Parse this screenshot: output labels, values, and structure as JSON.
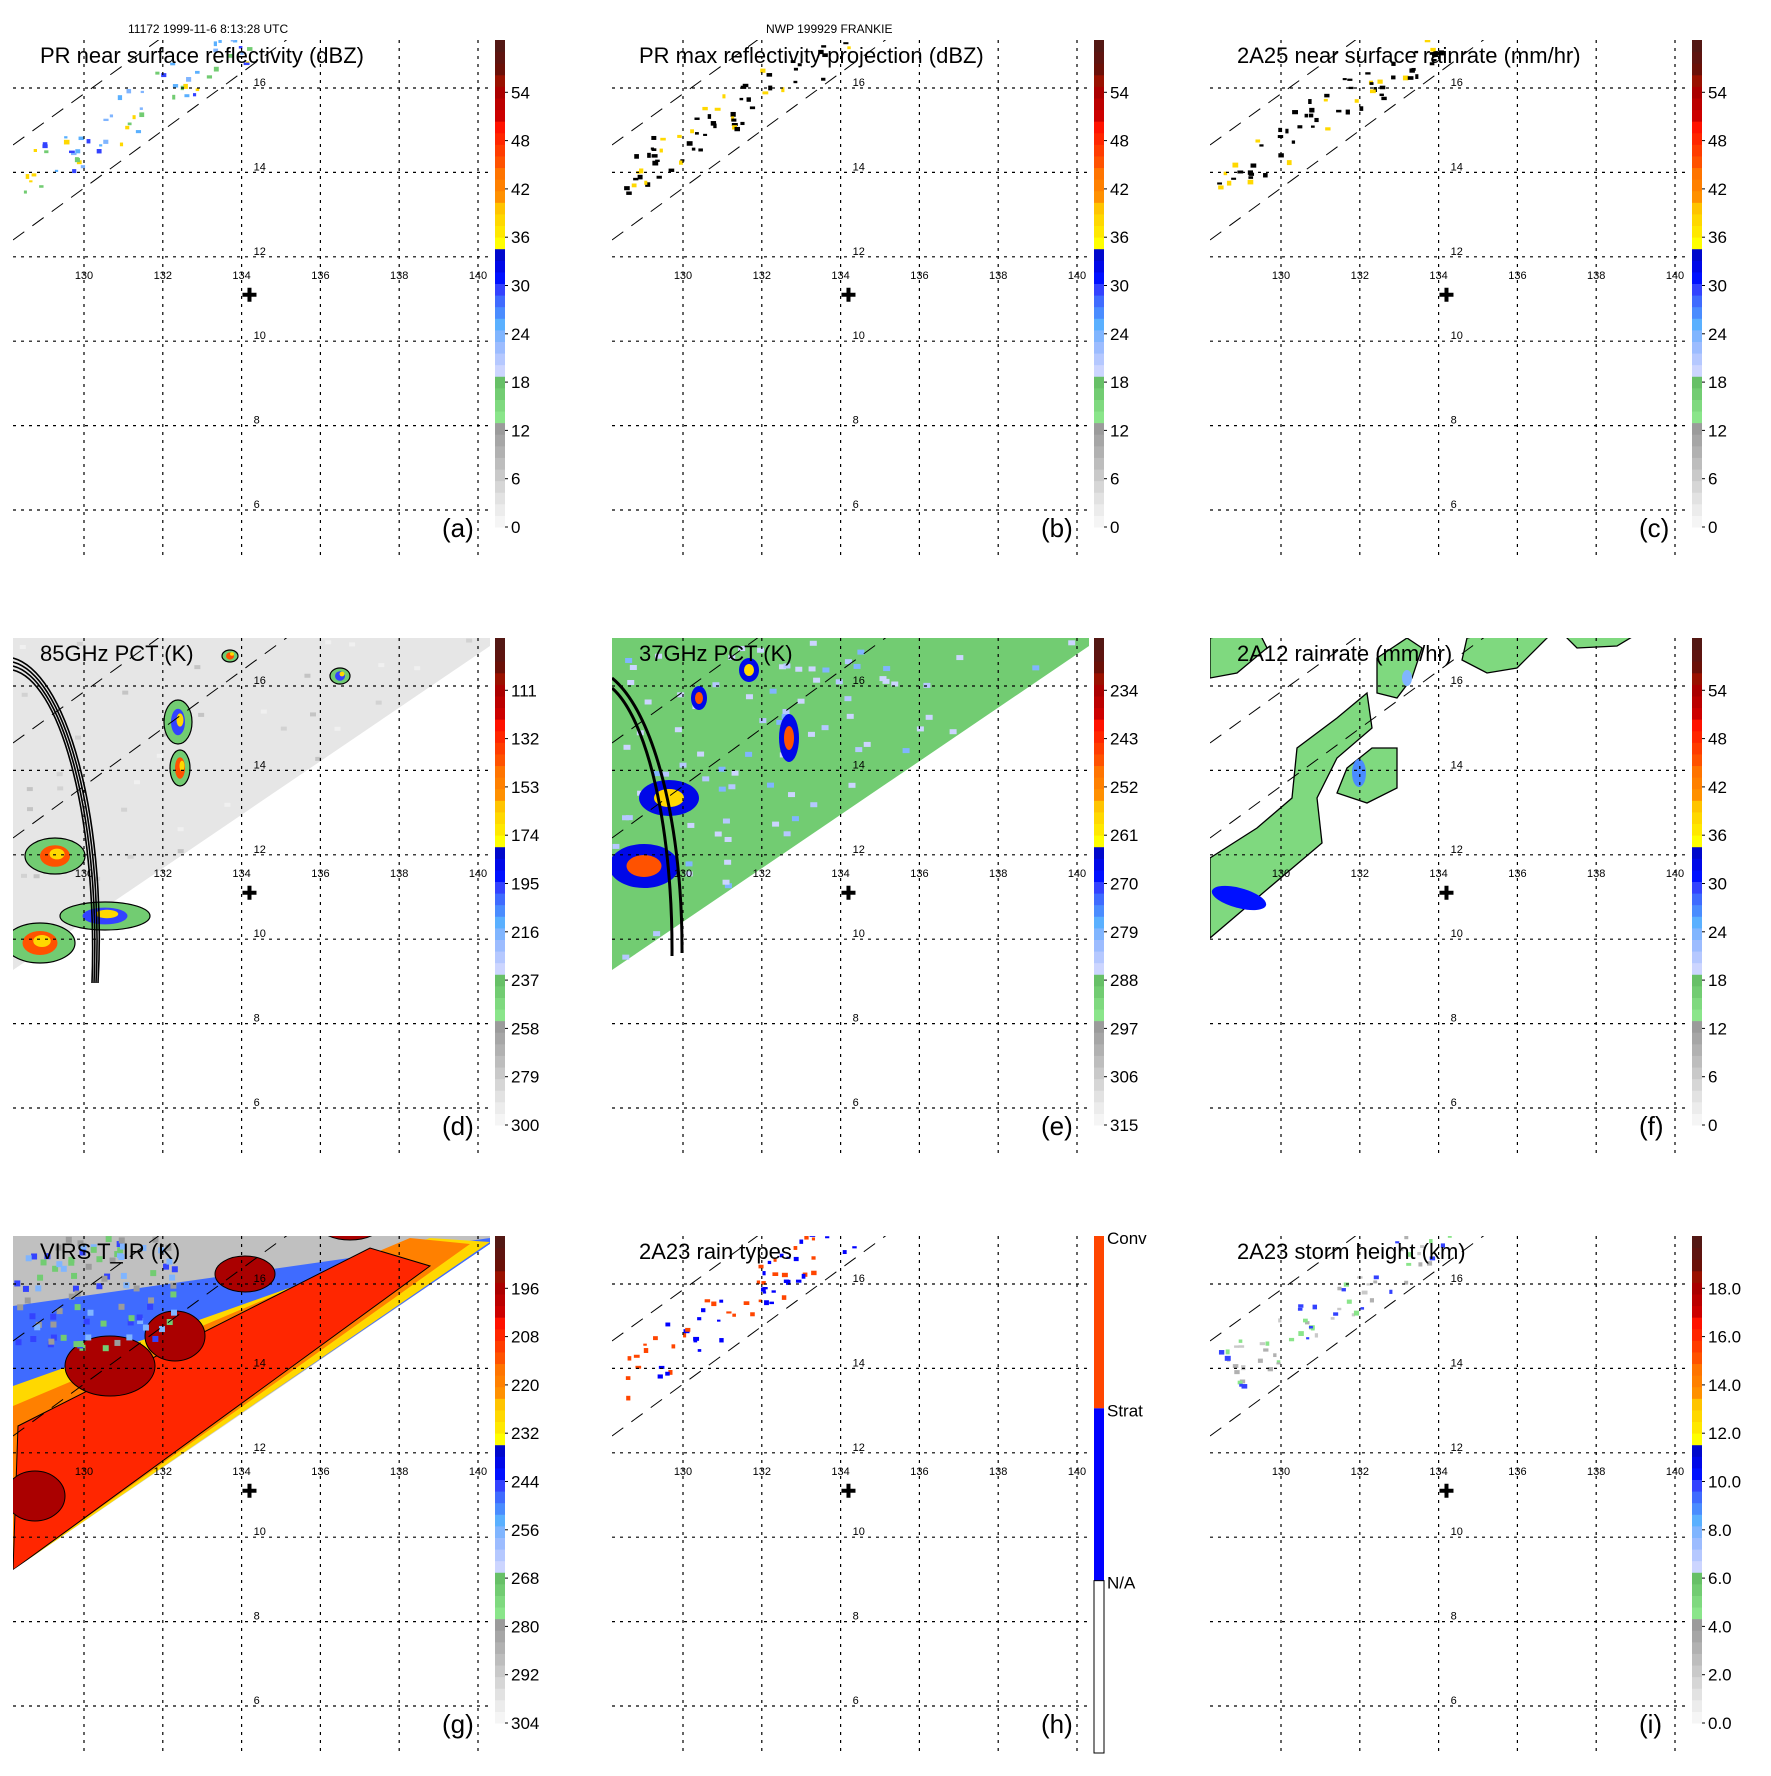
{
  "header": {
    "left_caption": "11172 1999-11-6 8:13:28 UTC",
    "center_caption": "NWP 199929 FRANKIE"
  },
  "palette": {
    "standard": [
      "#f5f5f5",
      "#ececec",
      "#e2e2e2",
      "#d6d6d6",
      "#c9c9c9",
      "#bdbdbd",
      "#b1b1b1",
      "#a6a6a6",
      "#9b9b9b",
      "#8ae58a",
      "#7fd97f",
      "#72cc72",
      "#67c067",
      "#ccd5ff",
      "#b5c8ff",
      "#9cbcff",
      "#80b5ff",
      "#5ab0ff",
      "#4a8cff",
      "#3f6bff",
      "#3342ff",
      "#0010ff",
      "#0008e8",
      "#0008cc",
      "#ffff00",
      "#ffe800",
      "#ffd800",
      "#ffc400",
      "#ff9000",
      "#ff8000",
      "#ff7400",
      "#ff5200",
      "#ff3c00",
      "#ff2600",
      "#ff1200",
      "#cc0000",
      "#bb0000",
      "#aa0000",
      "#991100",
      "#6a1008",
      "#5e1410",
      "#531814"
    ],
    "rain_types": {
      "conv": "#ff4500",
      "strat": "#0000ff",
      "na": "#ffffff"
    }
  },
  "chart_data": [
    {
      "id": "a",
      "type": "heatmap",
      "title": "PR near surface reflectivity (dBZ)",
      "panel_label": "(a)",
      "field": "pr_near_surface_reflectivity",
      "units": "dBZ",
      "colorbar": {
        "ticks": [
          "0",
          "6",
          "12",
          "18",
          "24",
          "30",
          "36",
          "42",
          "48",
          "54"
        ],
        "range": [
          0,
          60
        ],
        "colors": "standard_sparse"
      },
      "lon_ticks": [
        "130",
        "132",
        "134",
        "136",
        "138",
        "140"
      ],
      "lat_ticks": [
        "16",
        "14",
        "12",
        "10",
        "8",
        "6"
      ],
      "xlim": [
        128.3,
        140.3
      ],
      "ylim": [
        4.9,
        17.5
      ],
      "storm_center": {
        "lon": 134.2,
        "lat": 11.1
      },
      "swath": "pr",
      "features": "sparse_echoes"
    },
    {
      "id": "b",
      "type": "heatmap",
      "title": "PR max reflectivity projection (dBZ)",
      "panel_label": "(b)",
      "field": "pr_max_reflectivity",
      "units": "dBZ",
      "colorbar": {
        "ticks": [
          "0",
          "6",
          "12",
          "18",
          "24",
          "30",
          "36",
          "42",
          "48",
          "54"
        ],
        "range": [
          0,
          60
        ]
      },
      "lon_ticks": [
        "130",
        "132",
        "134",
        "136",
        "138",
        "140"
      ],
      "lat_ticks": [
        "16",
        "14",
        "12",
        "10",
        "8",
        "6"
      ],
      "xlim": [
        128.3,
        140.3
      ],
      "ylim": [
        4.9,
        17.5
      ],
      "storm_center": {
        "lon": 134.2,
        "lat": 11.1
      },
      "swath": "pr",
      "features": "contoured_echoes"
    },
    {
      "id": "c",
      "type": "heatmap",
      "title": "2A25 near surface rainrate (mm/hr)",
      "panel_label": "(c)",
      "field": "2a25_rainrate",
      "units": "mm/hr",
      "colorbar": {
        "ticks": [
          "0",
          "6",
          "12",
          "18",
          "24",
          "30",
          "36",
          "42",
          "48",
          "54"
        ],
        "range": [
          0,
          60
        ]
      },
      "lon_ticks": [
        "130",
        "132",
        "134",
        "136",
        "138",
        "140"
      ],
      "lat_ticks": [
        "16",
        "14",
        "12",
        "10",
        "8",
        "6"
      ],
      "xlim": [
        128.3,
        140.3
      ],
      "ylim": [
        4.9,
        17.5
      ],
      "storm_center": {
        "lon": 134.2,
        "lat": 11.1
      },
      "swath": "pr",
      "features": "contoured_echoes"
    },
    {
      "id": "d",
      "type": "heatmap",
      "title": "85GHz PCT (K)",
      "panel_label": "(d)",
      "field": "85ghz_pct",
      "units": "K",
      "colorbar": {
        "ticks": [
          "300",
          "279",
          "258",
          "237",
          "216",
          "195",
          "174",
          "153",
          "132",
          "111"
        ],
        "range": [
          300,
          90
        ]
      },
      "lon_ticks": [
        "130",
        "132",
        "134",
        "136",
        "138",
        "140"
      ],
      "lat_ticks": [
        "16",
        "14",
        "12",
        "10",
        "8",
        "6"
      ],
      "xlim": [
        128.3,
        140.3
      ],
      "ylim": [
        4.9,
        17.5
      ],
      "storm_center": {
        "lon": 134.2,
        "lat": 11.1
      },
      "swath": "tmi",
      "features": "gray_swath_with_cells"
    },
    {
      "id": "e",
      "type": "heatmap",
      "title": "37GHz PCT (K)",
      "panel_label": "(e)",
      "field": "37ghz_pct",
      "units": "K",
      "colorbar": {
        "ticks": [
          "315",
          "306",
          "297",
          "288",
          "279",
          "270",
          "261",
          "252",
          "243",
          "234"
        ],
        "range": [
          315,
          225
        ]
      },
      "lon_ticks": [
        "130",
        "132",
        "134",
        "136",
        "138",
        "140"
      ],
      "lat_ticks": [
        "16",
        "14",
        "12",
        "10",
        "8",
        "6"
      ],
      "xlim": [
        128.3,
        140.3
      ],
      "ylim": [
        4.9,
        17.5
      ],
      "storm_center": {
        "lon": 134.2,
        "lat": 11.1
      },
      "swath": "tmi",
      "features": "green_swath_with_cells"
    },
    {
      "id": "f",
      "type": "heatmap",
      "title": "2A12 rainrate (mm/hr)",
      "panel_label": "(f)",
      "field": "2a12_rainrate",
      "units": "mm/hr",
      "colorbar": {
        "ticks": [
          "0",
          "6",
          "12",
          "18",
          "24",
          "30",
          "36",
          "42",
          "48",
          "54"
        ],
        "range": [
          0,
          60
        ]
      },
      "lon_ticks": [
        "130",
        "132",
        "134",
        "136",
        "138",
        "140"
      ],
      "lat_ticks": [
        "16",
        "14",
        "12",
        "10",
        "8",
        "6"
      ],
      "xlim": [
        128.3,
        140.3
      ],
      "ylim": [
        4.9,
        17.5
      ],
      "storm_center": {
        "lon": 134.2,
        "lat": 11.1
      },
      "swath": "tmi",
      "features": "green_rain_bands"
    },
    {
      "id": "g",
      "type": "heatmap",
      "title": "VIRS T_IR (K)",
      "panel_label": "(g)",
      "field": "virs_tir",
      "units": "K",
      "colorbar": {
        "ticks": [
          "304",
          "292",
          "280",
          "268",
          "256",
          "244",
          "232",
          "220",
          "208",
          "196"
        ],
        "range": [
          304,
          184
        ]
      },
      "lon_ticks": [
        "130",
        "132",
        "134",
        "136",
        "138",
        "140"
      ],
      "lat_ticks": [
        "16",
        "14",
        "12",
        "10",
        "8",
        "6"
      ],
      "xlim": [
        128.3,
        140.3
      ],
      "ylim": [
        4.9,
        17.5
      ],
      "storm_center": {
        "lon": 134.2,
        "lat": 11.1
      },
      "swath": "virs",
      "features": "cold_cloud_shield"
    },
    {
      "id": "h",
      "type": "heatmap",
      "title": "2A23 rain types",
      "panel_label": "(h)",
      "field": "2a23_rain_type",
      "units": "",
      "colorbar": {
        "categorical": true,
        "labels": [
          "N/A",
          "Strat",
          "Conv"
        ]
      },
      "lon_ticks": [
        "130",
        "132",
        "134",
        "136",
        "138",
        "140"
      ],
      "lat_ticks": [
        "16",
        "14",
        "12",
        "10",
        "8",
        "6"
      ],
      "xlim": [
        128.3,
        140.3
      ],
      "ylim": [
        4.9,
        17.5
      ],
      "storm_center": {
        "lon": 134.2,
        "lat": 11.1
      },
      "swath": "pr",
      "features": "rain_type_dots"
    },
    {
      "id": "i",
      "type": "heatmap",
      "title": "2A23 storm height (km)",
      "panel_label": "(i)",
      "field": "2a23_storm_height",
      "units": "km",
      "colorbar": {
        "ticks": [
          "0.0",
          "2.0",
          "4.0",
          "6.0",
          "8.0",
          "10.0",
          "12.0",
          "14.0",
          "16.0",
          "18.0"
        ],
        "range": [
          0,
          20
        ]
      },
      "lon_ticks": [
        "130",
        "132",
        "134",
        "136",
        "138",
        "140"
      ],
      "lat_ticks": [
        "16",
        "14",
        "12",
        "10",
        "8",
        "6"
      ],
      "xlim": [
        128.3,
        140.3
      ],
      "ylim": [
        4.9,
        17.5
      ],
      "storm_center": {
        "lon": 134.2,
        "lat": 11.1
      },
      "swath": "pr",
      "features": "height_dots"
    }
  ]
}
